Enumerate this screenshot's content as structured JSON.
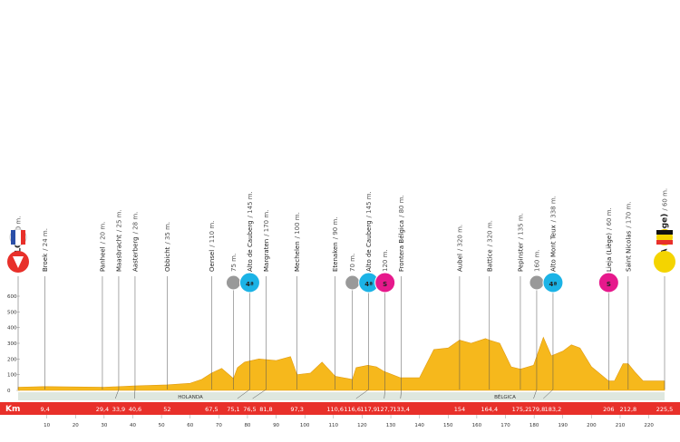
{
  "chart_data": {
    "type": "area",
    "color": "#f6b81c",
    "x": [
      0,
      9.4,
      20,
      30,
      40.6,
      52,
      60,
      64,
      67.5,
      71,
      75.1,
      76.5,
      79,
      84,
      90,
      95,
      97.3,
      102,
      106,
      110.6,
      116.6,
      117.9,
      122,
      125,
      127.7,
      133.4,
      140,
      145,
      150,
      154,
      158,
      163,
      164.4,
      168,
      172,
      175.2,
      179.8,
      183.2,
      186,
      190,
      193,
      196,
      200,
      206,
      208,
      211,
      212.8,
      215,
      218,
      225.5
    ],
    "values": [
      20,
      24,
      22,
      20,
      28,
      35,
      45,
      70,
      110,
      140,
      75,
      145,
      180,
      200,
      190,
      215,
      100,
      110,
      180,
      90,
      70,
      145,
      160,
      150,
      120,
      80,
      80,
      260,
      270,
      320,
      300,
      330,
      320,
      300,
      150,
      135,
      160,
      338,
      220,
      250,
      290,
      270,
      150,
      60,
      60,
      170,
      170,
      120,
      60,
      60
    ],
    "ylim": [
      0,
      600
    ],
    "yticks": [
      0,
      100,
      200,
      300,
      400,
      500,
      600
    ],
    "xlim": [
      0,
      225.5
    ],
    "xticks": [
      10,
      20,
      30,
      40,
      50,
      60,
      70,
      80,
      90,
      100,
      110,
      120,
      130,
      140,
      150,
      160,
      170,
      180,
      190,
      200,
      210,
      220
    ],
    "x_label": "Km",
    "countries": [
      "HOLANDA",
      "BÉLGICA"
    ],
    "places": [
      {
        "name": "VENLO",
        "alt": "/ 20 m.",
        "km": 0
      },
      {
        "name": "Broek",
        "alt": "/ 24 m.",
        "km": {
          "value": 9.4,
          "label": "9,4"
        }
      },
      {
        "name": "Panheel",
        "alt": "/ 20 m.",
        "km": {
          "value": 29.4,
          "label": "29,4"
        }
      },
      {
        "name": "Maasbracht",
        "alt": "/ 25 m.",
        "km": {
          "value": 33.9,
          "label": "33,9"
        }
      },
      {
        "name": "Aasterberg",
        "alt": "/ 28 m.",
        "km": {
          "value": 40.6,
          "label": "40,6"
        }
      },
      {
        "name": "Obbicht",
        "alt": "/ 35 m.",
        "km": 52
      },
      {
        "name": "Oensel",
        "alt": "/ 110 m.",
        "km": {
          "value": 67.5,
          "label": "67,5"
        }
      },
      {
        "alt": "75 m.",
        "km": {
          "value": 75.1,
          "label": "75,1"
        }
      },
      {
        "name": "Alto de Cauberg",
        "alt": "/ 145 m.",
        "km": {
          "value": 76.5,
          "label": "76,5"
        },
        "icon": "4ª"
      },
      {
        "name": "Margraten",
        "alt": "/ 170 m.",
        "km": {
          "value": 81.8,
          "label": "81,8"
        }
      },
      {
        "name": "Mechelen",
        "alt": "/ 100 m.",
        "km": {
          "value": 97.3,
          "label": "97,3"
        }
      },
      {
        "name": "Etenaken",
        "alt": "/ 90 m.",
        "km": {
          "value": 110.6,
          "label": "110,6"
        }
      },
      {
        "alt": "70 m.",
        "km": {
          "value": 116.6,
          "label": "116,6"
        }
      },
      {
        "name": "Alto de Cauberg",
        "alt": "/ 145 m.",
        "km": {
          "value": 117.9,
          "label": "117,9"
        },
        "icon": "4ª"
      },
      {
        "alt": "120 m.",
        "km": {
          "value": 127.7,
          "label": "127,7"
        },
        "icon": "S"
      },
      {
        "name": "Frontera Bélgica",
        "alt": "/ 80 m.",
        "km": {
          "value": 133.4,
          "label": "133,4"
        }
      },
      {
        "name": "Aubel",
        "alt": "/ 320 m.",
        "km": 154
      },
      {
        "name": "Battice",
        "alt": "/ 320 m.",
        "km": {
          "value": 164.4,
          "label": "164,4"
        }
      },
      {
        "name": "Pepinster",
        "alt": "/ 135 m.",
        "km": {
          "value": 175.2,
          "label": "175,2"
        }
      },
      {
        "alt": "160 m.",
        "km": {
          "value": 179.8,
          "label": "179,8"
        }
      },
      {
        "name": "Alto Mont Teux",
        "alt": "/ 338 m.",
        "km": {
          "value": 183.2,
          "label": "183,2"
        },
        "icon": "4ª"
      },
      {
        "name": "Lieja (Liège)",
        "alt": "/ 60 m.",
        "km": 206,
        "icon": "S"
      },
      {
        "name": "Saint Nicolas",
        "alt": "/ 170 m.",
        "km": {
          "value": 212.8,
          "label": "212,8"
        }
      },
      {
        "name": "LIEJA (Liège)",
        "alt": "/ 60 m.",
        "km": {
          "value": 225.5,
          "label": "225,5"
        }
      }
    ]
  }
}
